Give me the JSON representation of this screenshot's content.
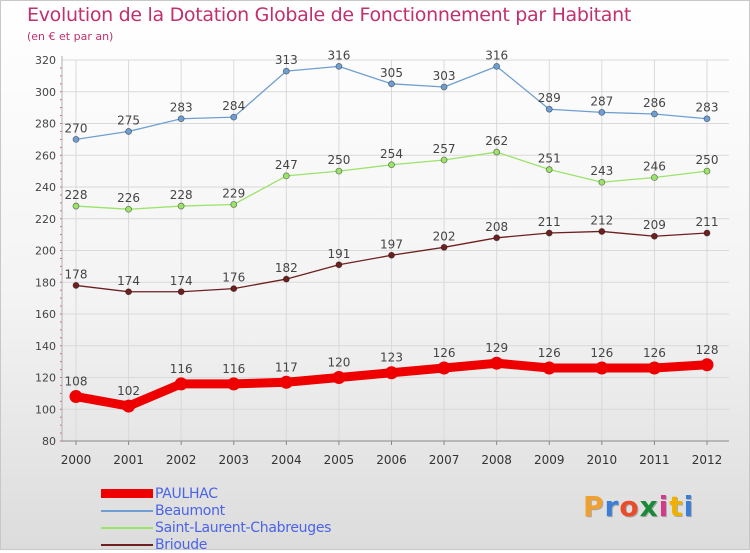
{
  "header": {
    "title": "Evolution de la Dotation Globale de Fonctionnement par Habitant",
    "subtitle": "(en € et par an)"
  },
  "chart_data": {
    "type": "line",
    "title": "Evolution de la Dotation Globale de Fonctionnement par Habitant",
    "subtitle": "(en € et par an)",
    "xlabel": "",
    "ylabel": "",
    "ylim": [
      80,
      320
    ],
    "ytick_step": 20,
    "grid": true,
    "legend_position": "bottom-left",
    "x": [
      "2000",
      "2001",
      "2002",
      "2003",
      "2004",
      "2005",
      "2006",
      "2007",
      "2008",
      "2009",
      "2010",
      "2011",
      "2012"
    ],
    "series": [
      {
        "name": "PAULHAC",
        "color": "#ee0000",
        "values": [
          108,
          102,
          116,
          116,
          117,
          120,
          123,
          126,
          129,
          126,
          126,
          126,
          128
        ]
      },
      {
        "name": "Beaumont",
        "color": "#6f9fd2",
        "values": [
          270,
          275,
          283,
          284,
          313,
          316,
          305,
          303,
          316,
          289,
          287,
          286,
          283
        ]
      },
      {
        "name": "Saint-Laurent-Chabreuges",
        "color": "#9be36a",
        "values": [
          228,
          226,
          228,
          229,
          247,
          250,
          254,
          257,
          262,
          251,
          243,
          246,
          250
        ]
      },
      {
        "name": "Brioude",
        "color": "#6e2020",
        "values": [
          178,
          174,
          174,
          176,
          182,
          191,
          197,
          202,
          208,
          211,
          212,
          209,
          211
        ]
      }
    ]
  },
  "brand": {
    "letters": [
      "P",
      "r",
      "o",
      "x",
      "i",
      "t",
      "i"
    ]
  }
}
